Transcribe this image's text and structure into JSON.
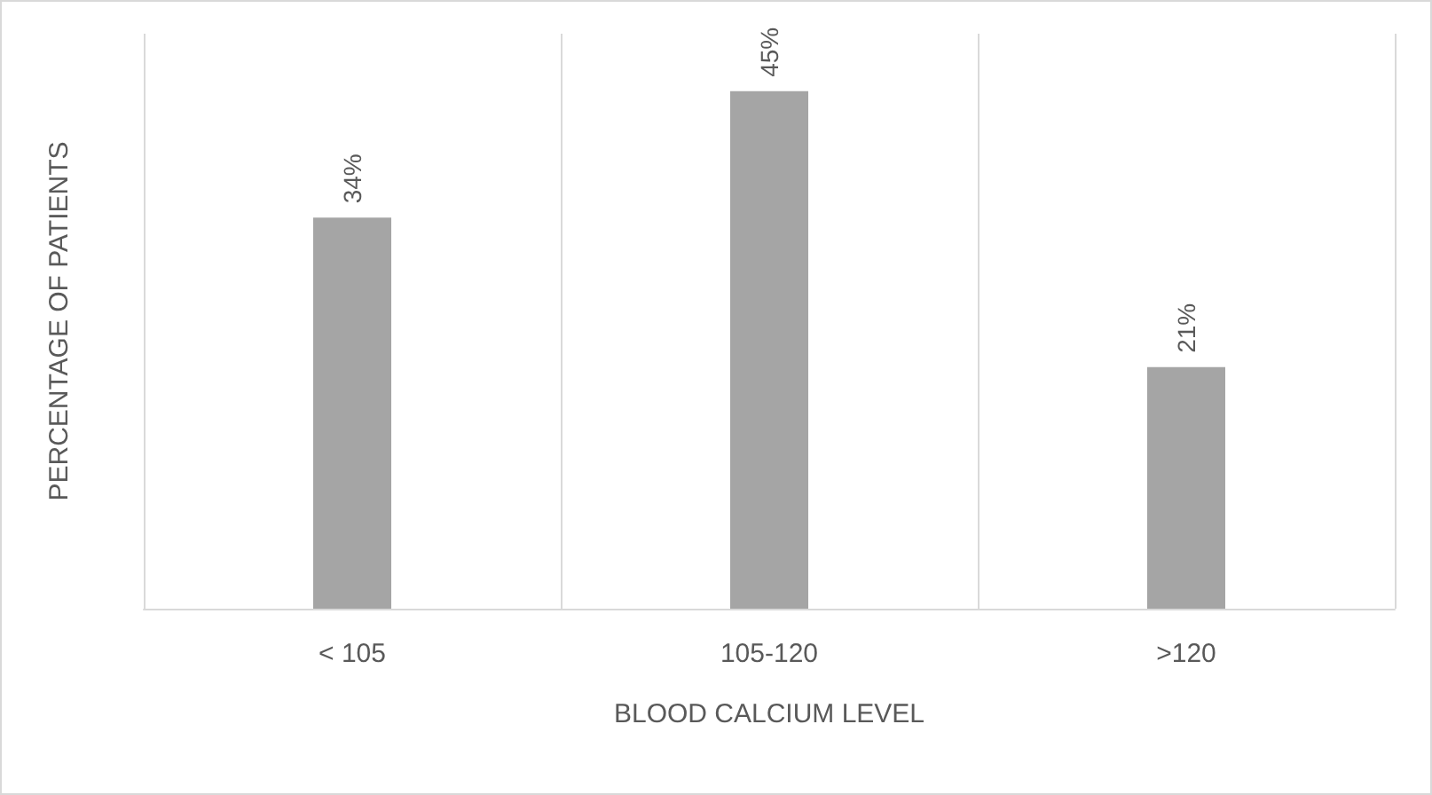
{
  "chart_data": {
    "type": "bar",
    "xlabel": "BLOOD CALCIUM LEVEL",
    "ylabel": "PERCENTAGE OF PATIENTS",
    "categories": [
      "< 105",
      "105-120",
      ">120"
    ],
    "values": [
      34,
      45,
      21
    ],
    "value_labels": [
      "34%",
      "45%",
      "21%"
    ],
    "color": "#a5a5a5",
    "grid": "x"
  }
}
